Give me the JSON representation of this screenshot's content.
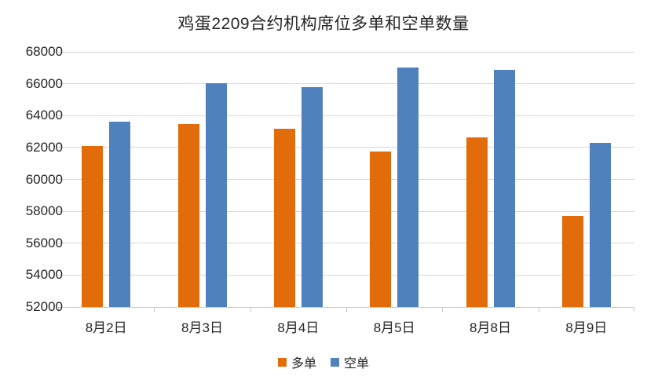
{
  "chart_data": {
    "type": "bar",
    "title": "鸡蛋2209合约机构席位多单和空单数量",
    "categories": [
      "8月2日",
      "8月3日",
      "8月4日",
      "8月5日",
      "8月8日",
      "8月9日"
    ],
    "series": [
      {
        "name": "多单",
        "color": "#E36C0A",
        "values": [
          62100,
          63450,
          63200,
          61750,
          62650,
          57700
        ]
      },
      {
        "name": "空单",
        "color": "#4F81BD",
        "values": [
          63600,
          66050,
          65800,
          67000,
          66850,
          62300
        ]
      }
    ],
    "xlabel": "",
    "ylabel": "",
    "ylim": [
      52000,
      68000
    ],
    "y_ticks": [
      52000,
      54000,
      56000,
      58000,
      60000,
      62000,
      64000,
      66000,
      68000
    ],
    "grid": true,
    "legend_position": "bottom",
    "colors": {
      "gridline": "#D9D9D9",
      "axis_line": "#C9C9C9",
      "text": "#262626",
      "background": "#FFFFFF"
    }
  }
}
